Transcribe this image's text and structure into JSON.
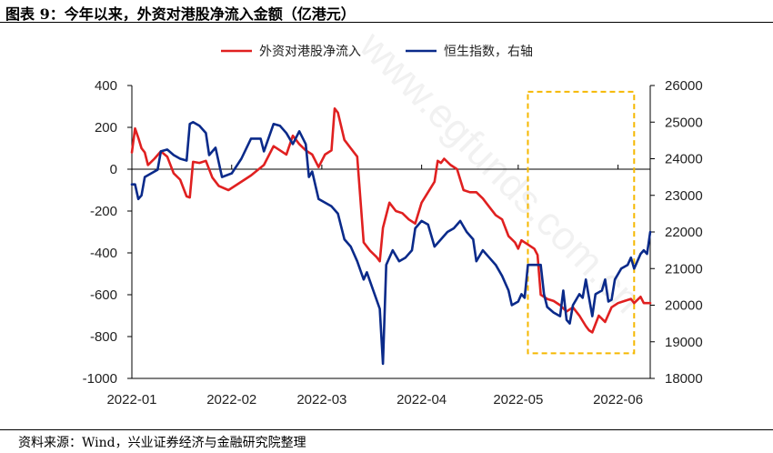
{
  "figure_title": "图表 9：今年以来，外资对港股净流入金额（亿港元）",
  "source_note": "资料来源：Wind，兴业证券经济与金融研究院整理",
  "watermark_text": "www.egfunds.com.cn",
  "colors": {
    "series_flow": "#e02020",
    "series_hsi": "#0a2a8a",
    "highlight_box": "#f5b800",
    "axis": "#000000"
  },
  "chart_data": {
    "type": "line",
    "legend_placement": "top",
    "grid": false,
    "x_start": "2022-01-01",
    "x_end": "2022-06-11",
    "x_ticks": [
      {
        "date": "2022-01-01",
        "label": "2022-01"
      },
      {
        "date": "2022-02-01",
        "label": "2022-02"
      },
      {
        "date": "2022-03-01",
        "label": "2022-03"
      },
      {
        "date": "2022-04-01",
        "label": "2022-04"
      },
      {
        "date": "2022-05-01",
        "label": "2022-05"
      },
      {
        "date": "2022-06-01",
        "label": "2022-06"
      }
    ],
    "y_left": {
      "min": -1000,
      "max": 400,
      "ticks": [
        "400",
        "200",
        "0",
        "-200",
        "-400",
        "-600",
        "-800",
        "-1000"
      ]
    },
    "y_right": {
      "min": 18000,
      "max": 26000,
      "ticks": [
        "26000",
        "25000",
        "24000",
        "23000",
        "22000",
        "21000",
        "20000",
        "19000",
        "18000"
      ]
    },
    "highlight_range": {
      "x_from": "2022-05-04",
      "x_to": "2022-06-06",
      "y_from": 370,
      "y_to": -880
    },
    "series": [
      {
        "name": "外资对港股净流入",
        "axis": "left",
        "points": [
          [
            "2022-01-01",
            80
          ],
          [
            "2022-01-02",
            195
          ],
          [
            "2022-01-03",
            150
          ],
          [
            "2022-01-04",
            100
          ],
          [
            "2022-01-05",
            80
          ],
          [
            "2022-01-06",
            20
          ],
          [
            "2022-01-08",
            50
          ],
          [
            "2022-01-10",
            85
          ],
          [
            "2022-01-12",
            60
          ],
          [
            "2022-01-14",
            -20
          ],
          [
            "2022-01-16",
            -50
          ],
          [
            "2022-01-18",
            -130
          ],
          [
            "2022-01-19",
            -135
          ],
          [
            "2022-01-20",
            35
          ],
          [
            "2022-01-22",
            30
          ],
          [
            "2022-01-24",
            40
          ],
          [
            "2022-01-26",
            -40
          ],
          [
            "2022-01-28",
            -80
          ],
          [
            "2022-01-31",
            -100
          ],
          [
            "2022-02-03",
            -70
          ],
          [
            "2022-02-07",
            -30
          ],
          [
            "2022-02-11",
            20
          ],
          [
            "2022-02-14",
            110
          ],
          [
            "2022-02-16",
            90
          ],
          [
            "2022-02-18",
            70
          ],
          [
            "2022-02-20",
            160
          ],
          [
            "2022-02-22",
            120
          ],
          [
            "2022-02-24",
            90
          ],
          [
            "2022-02-26",
            70
          ],
          [
            "2022-02-28",
            10
          ],
          [
            "2022-03-02",
            70
          ],
          [
            "2022-03-04",
            90
          ],
          [
            "2022-03-05",
            290
          ],
          [
            "2022-03-06",
            270
          ],
          [
            "2022-03-08",
            140
          ],
          [
            "2022-03-10",
            100
          ],
          [
            "2022-03-12",
            60
          ],
          [
            "2022-03-14",
            -350
          ],
          [
            "2022-03-16",
            -390
          ],
          [
            "2022-03-18",
            -420
          ],
          [
            "2022-03-19",
            -440
          ],
          [
            "2022-03-20",
            -280
          ],
          [
            "2022-03-22",
            -160
          ],
          [
            "2022-03-24",
            -200
          ],
          [
            "2022-03-26",
            -210
          ],
          [
            "2022-03-28",
            -240
          ],
          [
            "2022-03-30",
            -260
          ],
          [
            "2022-04-01",
            -160
          ],
          [
            "2022-04-03",
            -110
          ],
          [
            "2022-04-05",
            -60
          ],
          [
            "2022-04-06",
            40
          ],
          [
            "2022-04-07",
            30
          ],
          [
            "2022-04-08",
            50
          ],
          [
            "2022-04-10",
            20
          ],
          [
            "2022-04-12",
            0
          ],
          [
            "2022-04-14",
            -100
          ],
          [
            "2022-04-16",
            -110
          ],
          [
            "2022-04-18",
            -110
          ],
          [
            "2022-04-20",
            -140
          ],
          [
            "2022-04-22",
            -180
          ],
          [
            "2022-04-24",
            -220
          ],
          [
            "2022-04-26",
            -240
          ],
          [
            "2022-04-28",
            -320
          ],
          [
            "2022-04-30",
            -350
          ],
          [
            "2022-05-01",
            -380
          ],
          [
            "2022-05-02",
            -340
          ],
          [
            "2022-05-04",
            -360
          ],
          [
            "2022-05-06",
            -380
          ],
          [
            "2022-05-07",
            -410
          ],
          [
            "2022-05-08",
            -600
          ],
          [
            "2022-05-10",
            -620
          ],
          [
            "2022-05-12",
            -630
          ],
          [
            "2022-05-14",
            -650
          ],
          [
            "2022-05-16",
            -680
          ],
          [
            "2022-05-18",
            -660
          ],
          [
            "2022-05-20",
            -700
          ],
          [
            "2022-05-22",
            -750
          ],
          [
            "2022-05-23",
            -770
          ],
          [
            "2022-05-24",
            -780
          ],
          [
            "2022-05-26",
            -700
          ],
          [
            "2022-05-28",
            -730
          ],
          [
            "2022-05-30",
            -660
          ],
          [
            "2022-06-01",
            -640
          ],
          [
            "2022-06-03",
            -630
          ],
          [
            "2022-06-05",
            -620
          ],
          [
            "2022-06-06",
            -640
          ],
          [
            "2022-06-08",
            -610
          ],
          [
            "2022-06-09",
            -640
          ],
          [
            "2022-06-11",
            -640
          ]
        ]
      },
      {
        "name": "恒生指数，右轴",
        "axis": "right",
        "points": [
          [
            "2022-01-01",
            23300
          ],
          [
            "2022-01-02",
            23300
          ],
          [
            "2022-01-03",
            22900
          ],
          [
            "2022-01-04",
            23000
          ],
          [
            "2022-01-05",
            23500
          ],
          [
            "2022-01-07",
            23600
          ],
          [
            "2022-01-09",
            23700
          ],
          [
            "2022-01-10",
            24200
          ],
          [
            "2022-01-12",
            24250
          ],
          [
            "2022-01-14",
            24100
          ],
          [
            "2022-01-16",
            24000
          ],
          [
            "2022-01-18",
            23950
          ],
          [
            "2022-01-19",
            24950
          ],
          [
            "2022-01-20",
            25000
          ],
          [
            "2022-01-22",
            24900
          ],
          [
            "2022-01-24",
            24700
          ],
          [
            "2022-01-25",
            24100
          ],
          [
            "2022-01-27",
            24300
          ],
          [
            "2022-01-29",
            23500
          ],
          [
            "2022-02-01",
            23600
          ],
          [
            "2022-02-04",
            24000
          ],
          [
            "2022-02-07",
            24550
          ],
          [
            "2022-02-10",
            24550
          ],
          [
            "2022-02-11",
            24200
          ],
          [
            "2022-02-14",
            24950
          ],
          [
            "2022-02-16",
            24900
          ],
          [
            "2022-02-18",
            24700
          ],
          [
            "2022-02-20",
            24400
          ],
          [
            "2022-02-22",
            24750
          ],
          [
            "2022-02-24",
            24400
          ],
          [
            "2022-02-25",
            23500
          ],
          [
            "2022-02-26",
            23650
          ],
          [
            "2022-02-28",
            22900
          ],
          [
            "2022-03-02",
            22800
          ],
          [
            "2022-03-04",
            22700
          ],
          [
            "2022-03-06",
            22500
          ],
          [
            "2022-03-08",
            21800
          ],
          [
            "2022-03-10",
            21600
          ],
          [
            "2022-03-12",
            21200
          ],
          [
            "2022-03-14",
            20700
          ],
          [
            "2022-03-15",
            20900
          ],
          [
            "2022-03-17",
            20400
          ],
          [
            "2022-03-19",
            19900
          ],
          [
            "2022-03-20",
            18400
          ],
          [
            "2022-03-21",
            21100
          ],
          [
            "2022-03-23",
            21500
          ],
          [
            "2022-03-25",
            21200
          ],
          [
            "2022-03-27",
            21300
          ],
          [
            "2022-03-29",
            21500
          ],
          [
            "2022-03-30",
            22100
          ],
          [
            "2022-04-01",
            22300
          ],
          [
            "2022-04-03",
            22200
          ],
          [
            "2022-04-05",
            21600
          ],
          [
            "2022-04-07",
            21800
          ],
          [
            "2022-04-09",
            22000
          ],
          [
            "2022-04-11",
            22100
          ],
          [
            "2022-04-13",
            22300
          ],
          [
            "2022-04-15",
            22000
          ],
          [
            "2022-04-17",
            21800
          ],
          [
            "2022-04-18",
            21200
          ],
          [
            "2022-04-20",
            21500
          ],
          [
            "2022-04-22",
            21300
          ],
          [
            "2022-04-24",
            21100
          ],
          [
            "2022-04-26",
            20800
          ],
          [
            "2022-04-28",
            20400
          ],
          [
            "2022-04-29",
            20000
          ],
          [
            "2022-05-01",
            20100
          ],
          [
            "2022-05-02",
            20300
          ],
          [
            "2022-05-03",
            20200
          ],
          [
            "2022-05-04",
            21100
          ],
          [
            "2022-05-06",
            21100
          ],
          [
            "2022-05-08",
            21100
          ],
          [
            "2022-05-09",
            20300
          ],
          [
            "2022-05-10",
            19950
          ],
          [
            "2022-05-12",
            19800
          ],
          [
            "2022-05-14",
            19700
          ],
          [
            "2022-05-15",
            20400
          ],
          [
            "2022-05-16",
            19600
          ],
          [
            "2022-05-17",
            19500
          ],
          [
            "2022-05-18",
            20000
          ],
          [
            "2022-05-20",
            20300
          ],
          [
            "2022-05-21",
            20200
          ],
          [
            "2022-05-22",
            20700
          ],
          [
            "2022-05-23",
            20200
          ],
          [
            "2022-05-24",
            19700
          ],
          [
            "2022-05-25",
            20300
          ],
          [
            "2022-05-27",
            20400
          ],
          [
            "2022-05-28",
            20700
          ],
          [
            "2022-05-29",
            20100
          ],
          [
            "2022-05-30",
            20150
          ],
          [
            "2022-05-31",
            20700
          ],
          [
            "2022-06-02",
            21000
          ],
          [
            "2022-06-04",
            21100
          ],
          [
            "2022-06-05",
            21300
          ],
          [
            "2022-06-06",
            21000
          ],
          [
            "2022-06-08",
            21400
          ],
          [
            "2022-06-09",
            21500
          ],
          [
            "2022-06-10",
            21400
          ],
          [
            "2022-06-11",
            22000
          ]
        ]
      }
    ]
  }
}
